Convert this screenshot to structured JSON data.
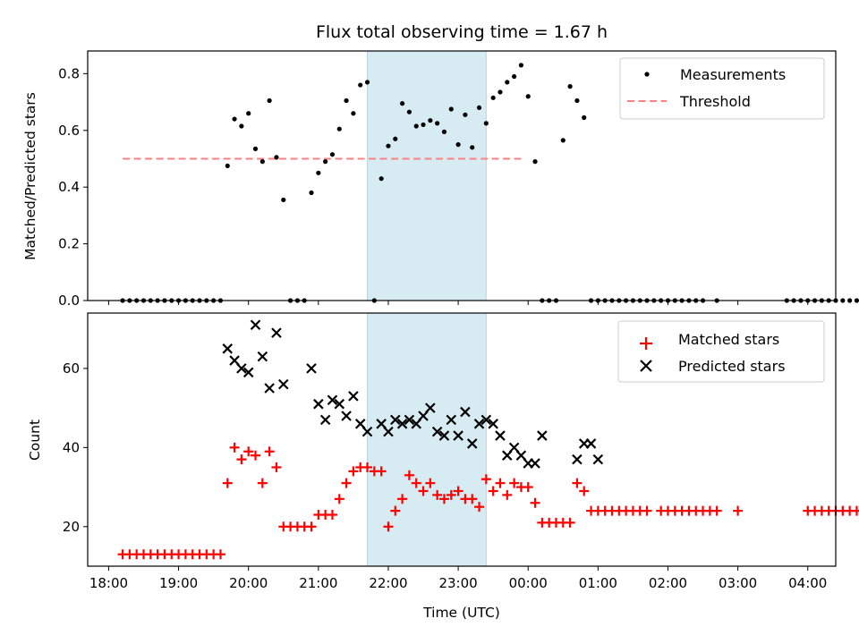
{
  "chart_data": [
    {
      "type": "scatter",
      "title": "Flux total observing time = 1.67 h",
      "xlabel": "",
      "ylabel": "Matched/Predicted stars",
      "xlim": [
        "17:42",
        "04:24"
      ],
      "ylim": [
        0,
        0.88
      ],
      "yticks": [
        "0.0",
        "0.2",
        "0.4",
        "0.6",
        "0.8"
      ],
      "shaded_span": [
        "21:42",
        "23:24"
      ],
      "legend": {
        "placement": "top-right",
        "entries": [
          "Measurements",
          "Threshold"
        ]
      },
      "threshold": {
        "name": "Threshold",
        "value": 0.5,
        "x": [
          "18:12",
          "23:54"
        ],
        "color": "#ff8080"
      },
      "series": [
        {
          "name": "Measurements",
          "color": "#000000",
          "points": [
            [
              "18:12",
              0
            ],
            [
              "18:18",
              0
            ],
            [
              "18:24",
              0
            ],
            [
              "18:30",
              0
            ],
            [
              "18:36",
              0
            ],
            [
              "18:42",
              0
            ],
            [
              "18:48",
              0
            ],
            [
              "18:54",
              0
            ],
            [
              "19:00",
              0
            ],
            [
              "19:06",
              0
            ],
            [
              "19:12",
              0
            ],
            [
              "19:18",
              0
            ],
            [
              "19:24",
              0
            ],
            [
              "19:30",
              0
            ],
            [
              "19:36",
              0
            ],
            [
              "19:42",
              0.475
            ],
            [
              "19:48",
              0.64
            ],
            [
              "19:54",
              0.615
            ],
            [
              "19:60",
              0.66
            ],
            [
              "20:06",
              0.535
            ],
            [
              "20:12",
              0.49
            ],
            [
              "20:18",
              0.705
            ],
            [
              "20:24",
              0.505
            ],
            [
              "20:30",
              0.355
            ],
            [
              "20:36",
              0
            ],
            [
              "20:42",
              0
            ],
            [
              "20:48",
              0
            ],
            [
              "20:54",
              0.38
            ],
            [
              "21:00",
              0.45
            ],
            [
              "21:06",
              0.49
            ],
            [
              "21:12",
              0.515
            ],
            [
              "21:18",
              0.605
            ],
            [
              "21:24",
              0.705
            ],
            [
              "21:30",
              0.66
            ],
            [
              "21:36",
              0.76
            ],
            [
              "21:42",
              0.77
            ],
            [
              "21:48",
              0
            ],
            [
              "21:54",
              0.43
            ],
            [
              "22:00",
              0.545
            ],
            [
              "22:06",
              0.57
            ],
            [
              "22:12",
              0.695
            ],
            [
              "22:18",
              0.665
            ],
            [
              "22:24",
              0.615
            ],
            [
              "22:30",
              0.62
            ],
            [
              "22:36",
              0.635
            ],
            [
              "22:42",
              0.625
            ],
            [
              "22:48",
              0.595
            ],
            [
              "22:54",
              0.675
            ],
            [
              "23:00",
              0.55
            ],
            [
              "23:06",
              0.655
            ],
            [
              "23:12",
              0.54
            ],
            [
              "23:18",
              0.68
            ],
            [
              "23:24",
              0.625
            ],
            [
              "23:30",
              0.715
            ],
            [
              "23:36",
              0.735
            ],
            [
              "23:42",
              0.77
            ],
            [
              "23:48",
              0.79
            ],
            [
              "23:54",
              0.83
            ],
            [
              "24:00",
              0.72
            ],
            [
              "24:06",
              0.49
            ],
            [
              "24:12",
              0
            ],
            [
              "24:18",
              0
            ],
            [
              "24:24",
              0
            ],
            [
              "24:30",
              0.565
            ],
            [
              "24:36",
              0.755
            ],
            [
              "24:42",
              0.705
            ],
            [
              "24:48",
              0.645
            ],
            [
              "24:54",
              0
            ],
            [
              "25:00",
              0
            ],
            [
              "25:06",
              0
            ],
            [
              "25:12",
              0
            ],
            [
              "25:18",
              0
            ],
            [
              "25:24",
              0
            ],
            [
              "25:30",
              0
            ],
            [
              "25:36",
              0
            ],
            [
              "25:42",
              0
            ],
            [
              "25:48",
              0
            ],
            [
              "25:54",
              0
            ],
            [
              "26:00",
              0
            ],
            [
              "26:06",
              0
            ],
            [
              "26:12",
              0
            ],
            [
              "26:18",
              0
            ],
            [
              "26:24",
              0
            ],
            [
              "26:30",
              0
            ],
            [
              "26:42",
              0
            ],
            [
              "27:42",
              0
            ],
            [
              "27:48",
              0
            ],
            [
              "27:54",
              0
            ],
            [
              "28:00",
              0
            ],
            [
              "28:06",
              0
            ],
            [
              "28:12",
              0
            ],
            [
              "28:18",
              0
            ],
            [
              "28:24",
              0
            ],
            [
              "28:30",
              0
            ],
            [
              "28:36",
              0
            ],
            [
              "28:42",
              0
            ]
          ]
        }
      ]
    },
    {
      "type": "scatter",
      "title": "",
      "xlabel": "Time (UTC)",
      "ylabel": "Count",
      "xlim": [
        "17:42",
        "04:24"
      ],
      "ylim": [
        10,
        74
      ],
      "yticks": [
        "20",
        "40",
        "60"
      ],
      "xticks": [
        "18:00",
        "19:00",
        "20:00",
        "21:00",
        "22:00",
        "23:00",
        "00:00",
        "01:00",
        "02:00",
        "03:00",
        "04:00"
      ],
      "shaded_span": [
        "21:42",
        "23:24"
      ],
      "legend": {
        "placement": "top-right",
        "entries": [
          "Matched stars",
          "Predicted stars"
        ]
      },
      "series": [
        {
          "name": "Matched stars",
          "marker": "+",
          "color": "#ff0000",
          "points": [
            [
              "18:12",
              13
            ],
            [
              "18:18",
              13
            ],
            [
              "18:24",
              13
            ],
            [
              "18:30",
              13
            ],
            [
              "18:36",
              13
            ],
            [
              "18:42",
              13
            ],
            [
              "18:48",
              13
            ],
            [
              "18:54",
              13
            ],
            [
              "19:00",
              13
            ],
            [
              "19:06",
              13
            ],
            [
              "19:12",
              13
            ],
            [
              "19:18",
              13
            ],
            [
              "19:24",
              13
            ],
            [
              "19:30",
              13
            ],
            [
              "19:36",
              13
            ],
            [
              "19:42",
              31
            ],
            [
              "19:48",
              40
            ],
            [
              "19:54",
              37
            ],
            [
              "19:60",
              39
            ],
            [
              "20:06",
              38
            ],
            [
              "20:12",
              31
            ],
            [
              "20:18",
              39
            ],
            [
              "20:24",
              35
            ],
            [
              "20:30",
              20
            ],
            [
              "20:36",
              20
            ],
            [
              "20:42",
              20
            ],
            [
              "20:48",
              20
            ],
            [
              "20:54",
              20
            ],
            [
              "21:00",
              23
            ],
            [
              "21:06",
              23
            ],
            [
              "21:12",
              23
            ],
            [
              "21:18",
              27
            ],
            [
              "21:24",
              31
            ],
            [
              "21:30",
              34
            ],
            [
              "21:36",
              35
            ],
            [
              "21:42",
              35
            ],
            [
              "21:48",
              34
            ],
            [
              "21:54",
              34
            ],
            [
              "22:00",
              20
            ],
            [
              "22:06",
              24
            ],
            [
              "22:12",
              27
            ],
            [
              "22:18",
              33
            ],
            [
              "22:24",
              31
            ],
            [
              "22:30",
              29
            ],
            [
              "22:36",
              31
            ],
            [
              "22:42",
              28
            ],
            [
              "22:48",
              27
            ],
            [
              "22:54",
              28
            ],
            [
              "23:00",
              29
            ],
            [
              "23:06",
              27
            ],
            [
              "23:12",
              27
            ],
            [
              "23:18",
              25
            ],
            [
              "23:24",
              32
            ],
            [
              "23:30",
              29
            ],
            [
              "23:36",
              31
            ],
            [
              "23:42",
              28
            ],
            [
              "23:48",
              31
            ],
            [
              "23:54",
              30
            ],
            [
              "24:00",
              30
            ],
            [
              "24:06",
              26
            ],
            [
              "24:12",
              21
            ],
            [
              "24:18",
              21
            ],
            [
              "24:24",
              21
            ],
            [
              "24:30",
              21
            ],
            [
              "24:36",
              21
            ],
            [
              "24:42",
              31
            ],
            [
              "24:48",
              29
            ],
            [
              "24:54",
              24
            ],
            [
              "25:00",
              24
            ],
            [
              "25:06",
              24
            ],
            [
              "25:12",
              24
            ],
            [
              "25:18",
              24
            ],
            [
              "25:24",
              24
            ],
            [
              "25:30",
              24
            ],
            [
              "25:36",
              24
            ],
            [
              "25:42",
              24
            ],
            [
              "25:54",
              24
            ],
            [
              "26:00",
              24
            ],
            [
              "26:06",
              24
            ],
            [
              "26:12",
              24
            ],
            [
              "26:18",
              24
            ],
            [
              "26:24",
              24
            ],
            [
              "26:30",
              24
            ],
            [
              "26:36",
              24
            ],
            [
              "26:42",
              24
            ],
            [
              "27:00",
              24
            ],
            [
              "28:00",
              24
            ],
            [
              "28:06",
              24
            ],
            [
              "28:12",
              24
            ],
            [
              "28:18",
              24
            ],
            [
              "28:24",
              24
            ],
            [
              "28:30",
              24
            ],
            [
              "28:36",
              24
            ],
            [
              "28:42",
              24
            ],
            [
              "28:48",
              24
            ],
            [
              "28:54",
              24
            ]
          ]
        },
        {
          "name": "Predicted stars",
          "marker": "x",
          "color": "#000000",
          "points": [
            [
              "19:42",
              65
            ],
            [
              "19:48",
              62
            ],
            [
              "19:54",
              60
            ],
            [
              "19:60",
              59
            ],
            [
              "20:06",
              71
            ],
            [
              "20:12",
              63
            ],
            [
              "20:18",
              55
            ],
            [
              "20:24",
              69
            ],
            [
              "20:30",
              56
            ],
            [
              "20:54",
              60
            ],
            [
              "21:00",
              51
            ],
            [
              "21:06",
              47
            ],
            [
              "21:12",
              52
            ],
            [
              "21:18",
              51
            ],
            [
              "21:24",
              48
            ],
            [
              "21:30",
              53
            ],
            [
              "21:36",
              46
            ],
            [
              "21:42",
              44
            ],
            [
              "21:54",
              46
            ],
            [
              "22:00",
              44
            ],
            [
              "22:06",
              47
            ],
            [
              "22:12",
              46
            ],
            [
              "22:18",
              47
            ],
            [
              "22:24",
              46
            ],
            [
              "22:30",
              48
            ],
            [
              "22:36",
              50
            ],
            [
              "22:42",
              44
            ],
            [
              "22:48",
              43
            ],
            [
              "22:54",
              47
            ],
            [
              "23:00",
              43
            ],
            [
              "23:06",
              49
            ],
            [
              "23:12",
              41
            ],
            [
              "23:18",
              46
            ],
            [
              "23:24",
              47
            ],
            [
              "23:30",
              46
            ],
            [
              "23:36",
              43
            ],
            [
              "23:42",
              38
            ],
            [
              "23:48",
              40
            ],
            [
              "23:54",
              38
            ],
            [
              "24:00",
              36
            ],
            [
              "24:06",
              36
            ],
            [
              "24:12",
              43
            ],
            [
              "24:42",
              37
            ],
            [
              "24:48",
              41
            ],
            [
              "24:54",
              41
            ],
            [
              "25:00",
              37
            ]
          ]
        }
      ]
    }
  ]
}
